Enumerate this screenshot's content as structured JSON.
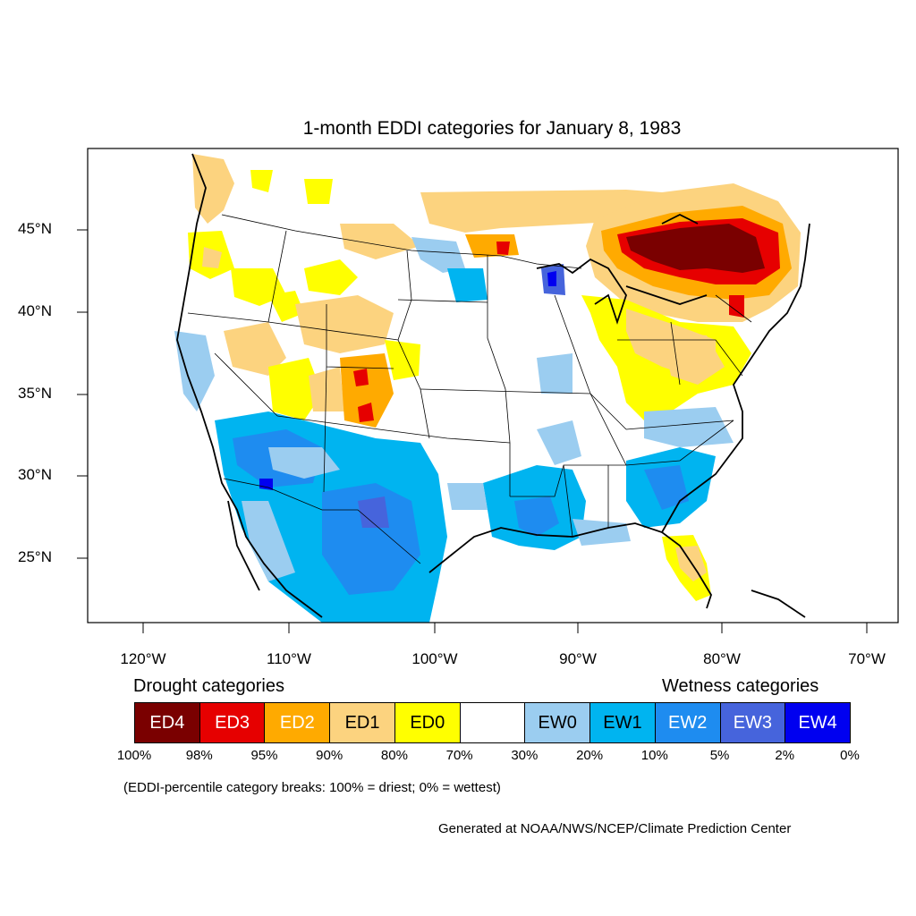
{
  "title": "1-month EDDI categories for January 8, 1983",
  "axes": {
    "lat_labels": [
      "45°N",
      "40°N",
      "35°N",
      "30°N",
      "25°N"
    ],
    "lon_labels": [
      "120°W",
      "110°W",
      "100°W",
      "90°W",
      "80°W",
      "70°W"
    ],
    "lat_values": [
      45,
      40,
      35,
      30,
      25
    ],
    "lon_values": [
      -120,
      -110,
      -100,
      -90,
      -80,
      -70
    ]
  },
  "legend": {
    "drought_title": "Drought categories",
    "wetness_title": "Wetness categories",
    "categories": [
      {
        "label": "ED4",
        "color": "#7a0000",
        "text_color": "#ffffff"
      },
      {
        "label": "ED3",
        "color": "#e60000",
        "text_color": "#ffffff"
      },
      {
        "label": "ED2",
        "color": "#ffaa00",
        "text_color": "#ffffff"
      },
      {
        "label": "ED1",
        "color": "#fcd37f",
        "text_color": "#000000"
      },
      {
        "label": "ED0",
        "color": "#ffff00",
        "text_color": "#000000"
      },
      {
        "label": "",
        "color": "#ffffff",
        "text_color": "#000000"
      },
      {
        "label": "EW0",
        "color": "#9bcdf0",
        "text_color": "#000000"
      },
      {
        "label": "EW1",
        "color": "#00b4f0",
        "text_color": "#000000"
      },
      {
        "label": "EW2",
        "color": "#1e8cf0",
        "text_color": "#ffffff"
      },
      {
        "label": "EW3",
        "color": "#4664dc",
        "text_color": "#ffffff"
      },
      {
        "label": "EW4",
        "color": "#0000f0",
        "text_color": "#ffffff"
      }
    ],
    "breaks": [
      "100%",
      "98%",
      "95%",
      "90%",
      "80%",
      "70%",
      "30%",
      "20%",
      "10%",
      "5%",
      "2%",
      "0%"
    ]
  },
  "note": "(EDDI-percentile category breaks: 100% = driest; 0% = wettest)",
  "credit": "Generated at NOAA/NWS/NCEP/Climate Prediction Center"
}
